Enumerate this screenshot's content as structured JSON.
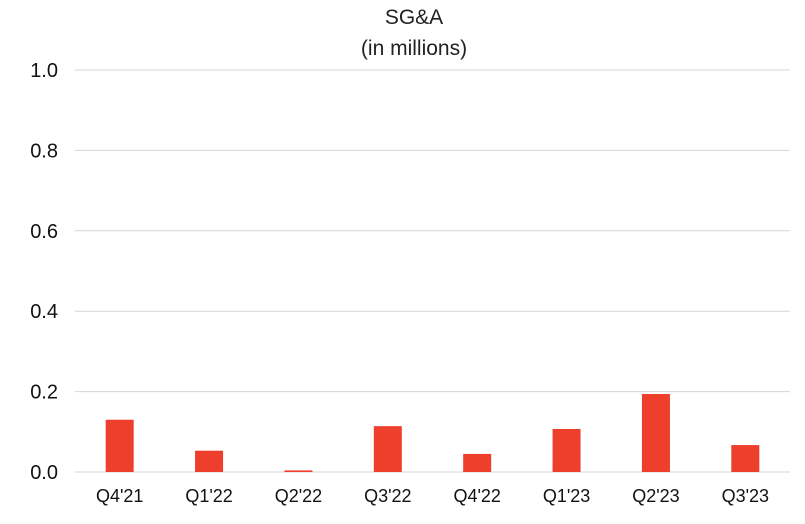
{
  "chart_data": {
    "type": "bar",
    "title": "SG&A",
    "subtitle": "(in millions)",
    "xlabel": "",
    "ylabel": "",
    "ylim": [
      0,
      1.0
    ],
    "yticks": [
      "0.0",
      "0.2",
      "0.4",
      "0.6",
      "0.8",
      "1.0"
    ],
    "grid": true,
    "categories": [
      "Q4'21",
      "Q1'22",
      "Q2'22",
      "Q3'22",
      "Q4'22",
      "Q1'23",
      "Q2'23",
      "Q3'23"
    ],
    "series": [
      {
        "values": [
          0.13,
          0.053,
          0.004,
          0.114,
          0.045,
          0.107,
          0.194,
          0.067
        ],
        "color": "#ee3e2c"
      }
    ]
  }
}
